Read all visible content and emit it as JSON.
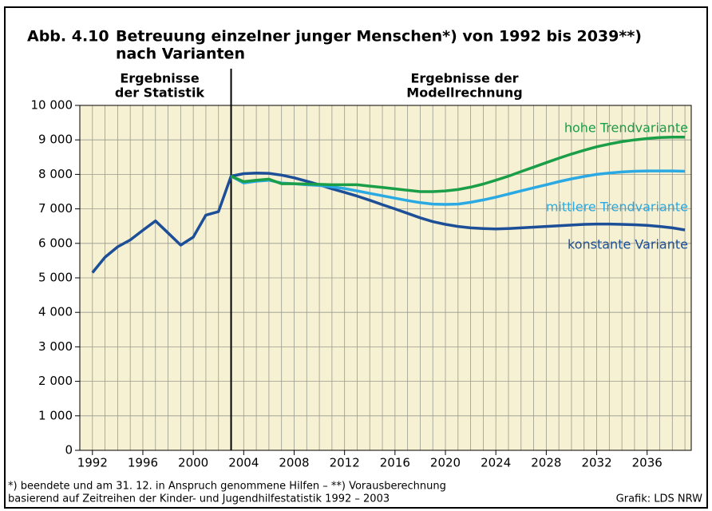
{
  "chart_data": {
    "type": "line",
    "figure_number": "Abb. 4.10",
    "title": [
      "Betreuung einzelner junger Menschen*) von 1992 bis 2039**)",
      "nach Varianten"
    ],
    "section_labels": [
      [
        "Ergebnisse",
        "der Statistik"
      ],
      [
        "Ergebnisse der",
        "Modellrechnung"
      ]
    ],
    "divider_x": 2003,
    "x": [
      1992,
      1993,
      1994,
      1995,
      1996,
      1997,
      1998,
      1999,
      2000,
      2001,
      2002,
      2003,
      2004,
      2005,
      2006,
      2007,
      2008,
      2009,
      2010,
      2011,
      2012,
      2013,
      2014,
      2015,
      2016,
      2017,
      2018,
      2019,
      2020,
      2021,
      2022,
      2023,
      2024,
      2025,
      2026,
      2027,
      2028,
      2029,
      2030,
      2031,
      2032,
      2033,
      2034,
      2035,
      2036,
      2037,
      2038,
      2039
    ],
    "series": [
      {
        "name": "hohe Trendvariante",
        "color": "#1a9e48",
        "values": [
          null,
          null,
          null,
          null,
          null,
          null,
          null,
          null,
          null,
          null,
          null,
          7950,
          7790,
          7830,
          7860,
          7730,
          7730,
          7720,
          7710,
          7700,
          7700,
          7700,
          7660,
          7620,
          7580,
          7540,
          7500,
          7500,
          7520,
          7560,
          7630,
          7720,
          7830,
          7950,
          8080,
          8210,
          8340,
          8470,
          8590,
          8700,
          8800,
          8880,
          8950,
          9000,
          9040,
          9070,
          9080,
          9080
        ]
      },
      {
        "name": "mittlere Trendvariante",
        "color": "#2aa9e2",
        "values": [
          null,
          null,
          null,
          null,
          null,
          null,
          null,
          null,
          null,
          null,
          null,
          7950,
          7750,
          7800,
          7830,
          7750,
          7730,
          7700,
          7680,
          7640,
          7590,
          7520,
          7450,
          7380,
          7310,
          7240,
          7180,
          7140,
          7130,
          7140,
          7190,
          7260,
          7340,
          7430,
          7520,
          7610,
          7700,
          7790,
          7870,
          7940,
          8000,
          8040,
          8070,
          8090,
          8100,
          8100,
          8100,
          8090
        ]
      },
      {
        "name": "konstante Variante",
        "color": "#1c4f97",
        "values": [
          5150,
          5600,
          5900,
          6100,
          6380,
          6650,
          6300,
          5950,
          6180,
          6820,
          6920,
          7950,
          8020,
          8040,
          8030,
          7980,
          7900,
          7800,
          7700,
          7580,
          7480,
          7370,
          7250,
          7120,
          7000,
          6870,
          6740,
          6630,
          6550,
          6490,
          6450,
          6430,
          6420,
          6430,
          6450,
          6470,
          6490,
          6510,
          6530,
          6550,
          6560,
          6560,
          6550,
          6540,
          6520,
          6490,
          6450,
          6390
        ]
      }
    ],
    "xlim": [
      1991,
      2039.5
    ],
    "xticks": [
      1992,
      1996,
      2000,
      2004,
      2008,
      2012,
      2016,
      2020,
      2024,
      2028,
      2032,
      2036
    ],
    "ylim": [
      0,
      10000
    ],
    "yticks": [
      0,
      {
        "value": 1000,
        "label": "1 000"
      },
      {
        "value": 2000,
        "label": "2 000"
      },
      {
        "value": 3000,
        "label": "3 000"
      },
      {
        "value": 4000,
        "label": "4 000"
      },
      {
        "value": 5000,
        "label": "5 000"
      },
      {
        "value": 6000,
        "label": "6 000"
      },
      {
        "value": 7000,
        "label": "7 000"
      },
      {
        "value": 8000,
        "label": "8 000"
      },
      {
        "value": 9000,
        "label": "9 000"
      },
      {
        "value": 10000,
        "label": "10 000"
      }
    ],
    "grid": true,
    "background": "#f6f1d3",
    "footnotes": [
      "*) beendete und am 31. 12. in Anspruch genommene Hilfen – **) Vorausberechnung",
      "basierend auf Zeitreihen der Kinder- und Jugendhilfestatistik 1992 – 2003"
    ],
    "source": "Grafik: LDS NRW"
  }
}
